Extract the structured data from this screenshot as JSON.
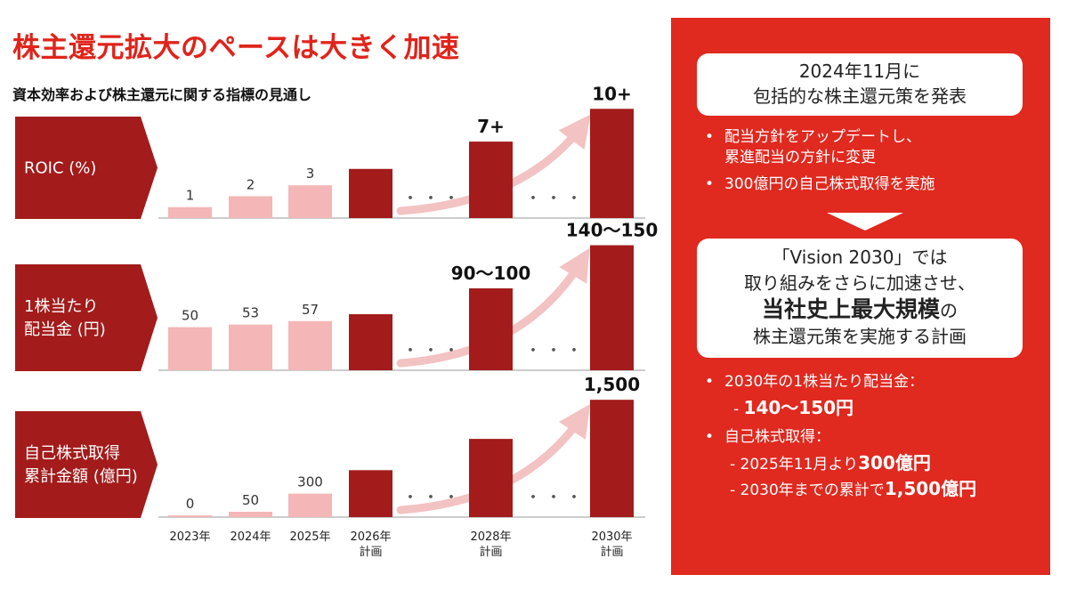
{
  "title": "株主還元拡大のペースは大きく加速",
  "subtitle": "資本効率および株主還元に関する指標の見通し",
  "chart_data": {
    "type": "bar",
    "categories": [
      "2023年",
      "2024年",
      "2025年",
      "2026年\n計画",
      "2028年\n計画",
      "2030年\n計画"
    ],
    "category_lines": [
      [
        "2023年"
      ],
      [
        "2024年"
      ],
      [
        "2025年"
      ],
      [
        "2026年",
        "計画"
      ],
      [
        "2028年",
        "計画"
      ],
      [
        "2030年",
        "計画"
      ]
    ],
    "dots_text": "・・・",
    "colors": {
      "actual": "#f4b6b6",
      "plan": "#a31b1b",
      "label_bg": "#a31b1b",
      "arrow": "#f3c2c2"
    },
    "series": [
      {
        "name": "ROIC (%)",
        "label_lines": [
          "ROIC (%)"
        ],
        "values": [
          1,
          2,
          3,
          4.5,
          7,
          10
        ],
        "labels": [
          "1",
          "2",
          "3",
          "",
          "7+",
          "10+"
        ],
        "ylim": [
          0,
          11
        ]
      },
      {
        "name": "1株当たり配当金 (円)",
        "label_lines": [
          "1株当たり",
          "配当金 (円)"
        ],
        "values": [
          50,
          53,
          57,
          65,
          95,
          145
        ],
        "labels": [
          "50",
          "53",
          "57",
          "",
          "90〜100",
          "140〜150"
        ],
        "ylim": [
          0,
          160
        ]
      },
      {
        "name": "自己株式取得累計金額 (億円)",
        "label_lines": [
          "自己株式取得",
          "累計金額 (億円)"
        ],
        "values": [
          0,
          50,
          300,
          600,
          1000,
          1500
        ],
        "labels": [
          "0",
          "50",
          "300",
          "",
          "",
          "1,500"
        ],
        "ylim": [
          0,
          1650
        ]
      }
    ]
  },
  "panel": {
    "box1_lines": [
      "2024年11月に",
      "包括的な株主還元策を発表"
    ],
    "bullets_top": [
      {
        "lines": [
          "配当方針をアップデートし、",
          "累進配当の方針に変更"
        ]
      },
      {
        "lines": [
          "300億円の自己株式取得を実施"
        ]
      }
    ],
    "box2": {
      "line1": "「Vision 2030」では",
      "line2": "取り組みをさらに加速させ、",
      "line3_bold": "当社史上最大規模",
      "line3_rest": "の",
      "line4": "株主還元策を実施する計画"
    },
    "bullet_dividend": "2030年の1株当たり配当金：",
    "dividend_sub_prefix": "- ",
    "dividend_sub_bold": "140〜150円",
    "bullet_buyback": "自己株式取得：",
    "buyback_sub1_prefix": "- 2025年11月より",
    "buyback_sub1_bold": "300億円",
    "buyback_sub2_prefix": "- 2030年までの累計で",
    "buyback_sub2_bold": "1,500億円",
    "bullet_char": "•"
  }
}
